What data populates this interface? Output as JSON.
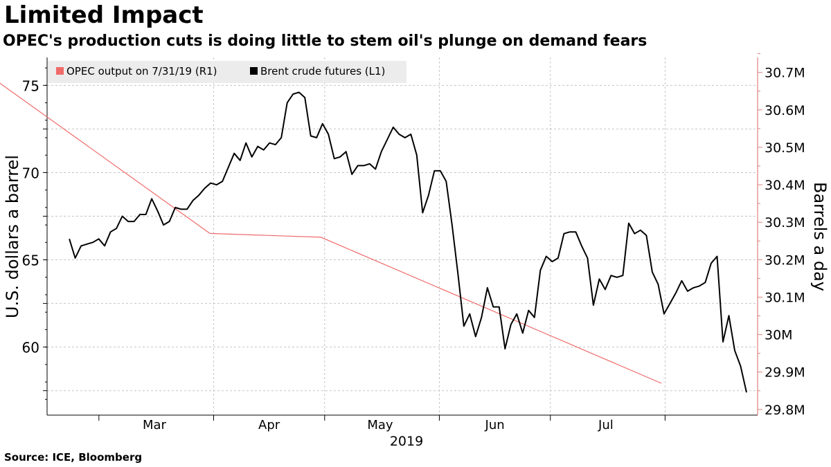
{
  "title": "Limited Impact",
  "subtitle": "OPEC's production cuts is doing little to stem oil's plunge on demand fears",
  "source": "Source: ICE, Bloomberg",
  "colors": {
    "brent": "#000000",
    "opec": "#f06a6a",
    "grid": "#bbbbbb",
    "right_axis": "#e08080"
  },
  "chart_data": {
    "type": "line",
    "legend": [
      "OPEC output on 7/31/19 (R1)",
      "Brent crude futures (L1)"
    ],
    "ylabel_left": "U.S. dollars a barrel",
    "ylabel_right": "Barrels a day",
    "xlabel": "2019",
    "month_labels": [
      "Mar",
      "Apr",
      "May",
      "Jun",
      "Jul"
    ],
    "ylim_left": [
      56.1,
      76.6
    ],
    "yticks_left": [
      "60",
      "65",
      "70",
      "75"
    ],
    "ylim_right": [
      29.785,
      30.74
    ],
    "yticks_right": [
      "29.8M",
      "29.9M",
      "30M",
      "30.1M",
      "30.2M",
      "30.3M",
      "30.4M",
      "30.5M",
      "30.6M",
      "30.7M"
    ],
    "series": [
      {
        "name": "Brent crude futures (L1)",
        "axis": "left",
        "date_range": [
          "2019-02-21",
          "2019-08-23"
        ],
        "values": [
          66.2,
          65.1,
          65.8,
          65.9,
          66.0,
          66.2,
          65.8,
          66.6,
          66.8,
          67.5,
          67.2,
          67.2,
          67.6,
          67.6,
          68.5,
          67.8,
          67.0,
          67.2,
          68.0,
          67.9,
          67.9,
          68.4,
          68.7,
          69.1,
          69.4,
          69.3,
          69.5,
          70.3,
          71.1,
          70.7,
          71.7,
          70.9,
          71.5,
          71.3,
          71.7,
          71.6,
          72.0,
          74.0,
          74.5,
          74.6,
          74.3,
          72.1,
          72.0,
          72.8,
          72.2,
          70.8,
          70.9,
          71.2,
          69.9,
          70.4,
          70.4,
          70.5,
          70.2,
          71.2,
          71.9,
          72.6,
          72.2,
          72.0,
          72.2,
          71.0,
          67.7,
          68.7,
          70.1,
          70.1,
          69.5,
          67.0,
          64.2,
          61.2,
          61.9,
          60.6,
          61.7,
          63.4,
          62.3,
          62.3,
          59.9,
          61.3,
          61.9,
          60.8,
          62.1,
          61.7,
          64.4,
          65.2,
          64.9,
          65.1,
          66.5,
          66.6,
          66.6,
          65.8,
          65.1,
          62.4,
          63.9,
          63.3,
          64.1,
          64.0,
          64.1,
          67.1,
          66.5,
          66.7,
          66.4,
          64.3,
          63.6,
          61.9,
          62.5,
          63.1,
          63.8,
          63.2,
          63.4,
          63.5,
          63.7,
          64.8,
          65.2,
          60.3,
          61.8,
          59.8,
          58.9,
          57.4
        ]
      },
      {
        "name": "OPEC output on 7/31/19 (R1)",
        "axis": "right",
        "points": [
          {
            "date": "2019-02-01",
            "value": 30.68
          },
          {
            "date": "2019-03-31",
            "value": 30.27
          },
          {
            "date": "2019-04-30",
            "value": 30.26
          },
          {
            "date": "2019-07-31",
            "value": 29.87
          }
        ]
      }
    ]
  }
}
